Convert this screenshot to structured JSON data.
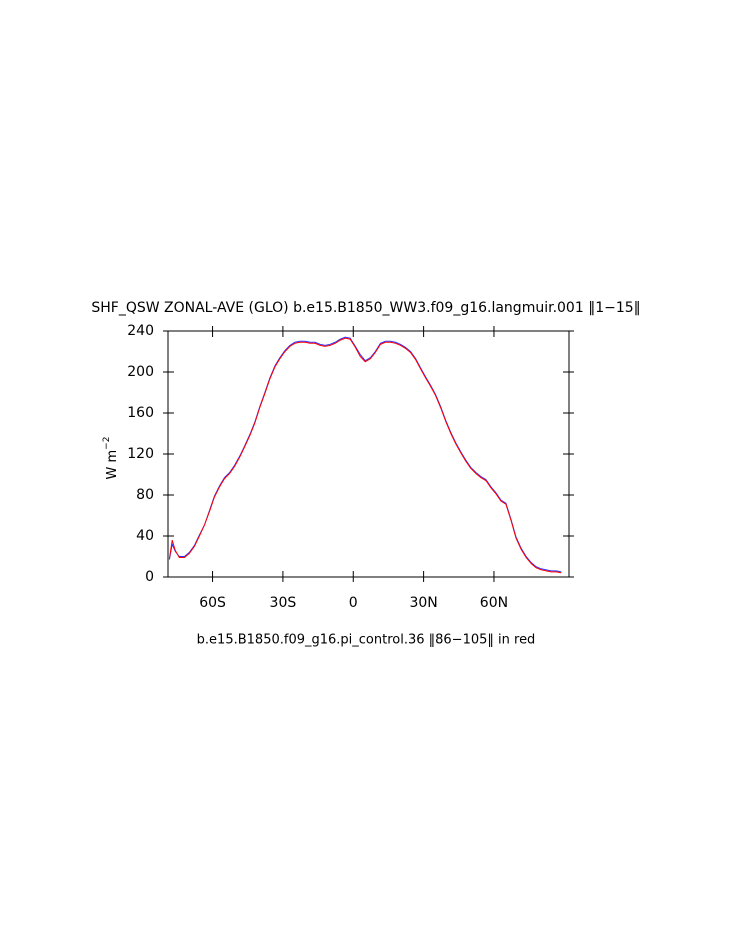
{
  "chart_data": {
    "type": "line",
    "title": "SHF_QSW ZONAL-AVE (GLO) b.e15.B1850_WW3.f09_g16.langmuir.001 ‖1−15‖",
    "subtitle": "b.e15.B1850.f09_g16.pi_control.36 ‖86−105‖ in red",
    "ylabel": "W m",
    "ylabel_exponent": "−2",
    "x": [
      -78.4,
      -77.2,
      -75.9,
      -74.2,
      -72,
      -69.9,
      -67.7,
      -65.6,
      -63.4,
      -61.3,
      -59.2,
      -57,
      -54.9,
      -52.7,
      -50.6,
      -48.4,
      -46.3,
      -44.1,
      -42,
      -39.9,
      -37.7,
      -35.6,
      -33.4,
      -31.3,
      -29.1,
      -27,
      -24.9,
      -22.7,
      -20.6,
      -18.4,
      -16.3,
      -14.1,
      -12,
      -9.9,
      -7.7,
      -5.6,
      -3.4,
      -1.3,
      0.9,
      3,
      5.1,
      7.3,
      9.4,
      11.6,
      13.7,
      15.9,
      18,
      20.1,
      22.3,
      24.4,
      26.6,
      28.7,
      30.9,
      33,
      35.1,
      37.3,
      39.4,
      41.6,
      43.7,
      45.9,
      48,
      50.1,
      52.3,
      54.4,
      56.6,
      58.7,
      60.9,
      63,
      65.1,
      67.3,
      69.4,
      71.6,
      73.7,
      75.9,
      78,
      80.1,
      82.3,
      84.4,
      86.6,
      88.7
    ],
    "series": [
      {
        "color": "#3030ff",
        "values": [
          17,
          32,
          25,
          20,
          20,
          24,
          31,
          41,
          51,
          65,
          79,
          89,
          97,
          102,
          109,
          118,
          128,
          139,
          151,
          166,
          180,
          194,
          206,
          214,
          221,
          226,
          229,
          230,
          230,
          229,
          229,
          227,
          226,
          227,
          229,
          232,
          234,
          233,
          225,
          217,
          211,
          214,
          220,
          228,
          230,
          230,
          229,
          227,
          224,
          220,
          213,
          204,
          195,
          187,
          178,
          166,
          153,
          141,
          131,
          122,
          114,
          107,
          102,
          98,
          95,
          88,
          82,
          75,
          72,
          56,
          39,
          28,
          20,
          14,
          10,
          8,
          7,
          6,
          6,
          5
        ]
      },
      {
        "color": "#ff0000",
        "values": [
          18,
          36,
          26,
          19,
          19,
          23,
          30,
          40,
          51,
          64,
          78,
          88,
          96,
          101,
          108,
          117,
          127,
          138,
          150,
          165,
          179,
          193,
          205,
          213,
          220,
          225,
          228,
          229,
          229,
          228,
          228,
          226,
          225,
          226,
          228,
          231,
          233,
          232,
          224,
          215,
          210,
          213,
          219,
          227,
          229,
          229,
          228,
          226,
          223,
          219,
          212,
          203,
          194,
          186,
          177,
          165,
          152,
          140,
          130,
          121,
          113,
          106,
          101,
          97,
          94,
          87,
          81,
          74,
          71,
          55,
          38,
          27,
          19,
          13,
          9,
          7,
          6,
          5,
          5,
          4
        ]
      }
    ],
    "xlim": [
      -79,
      92
    ],
    "xticks": [
      {
        "value": -60,
        "label": "60S"
      },
      {
        "value": -30,
        "label": "30S"
      },
      0,
      {
        "value": 30,
        "label": "30N"
      },
      {
        "value": 60,
        "label": "60N"
      }
    ],
    "ylim": [
      0,
      240
    ],
    "yticks": [
      0,
      40,
      80,
      120,
      160,
      200,
      240
    ]
  }
}
